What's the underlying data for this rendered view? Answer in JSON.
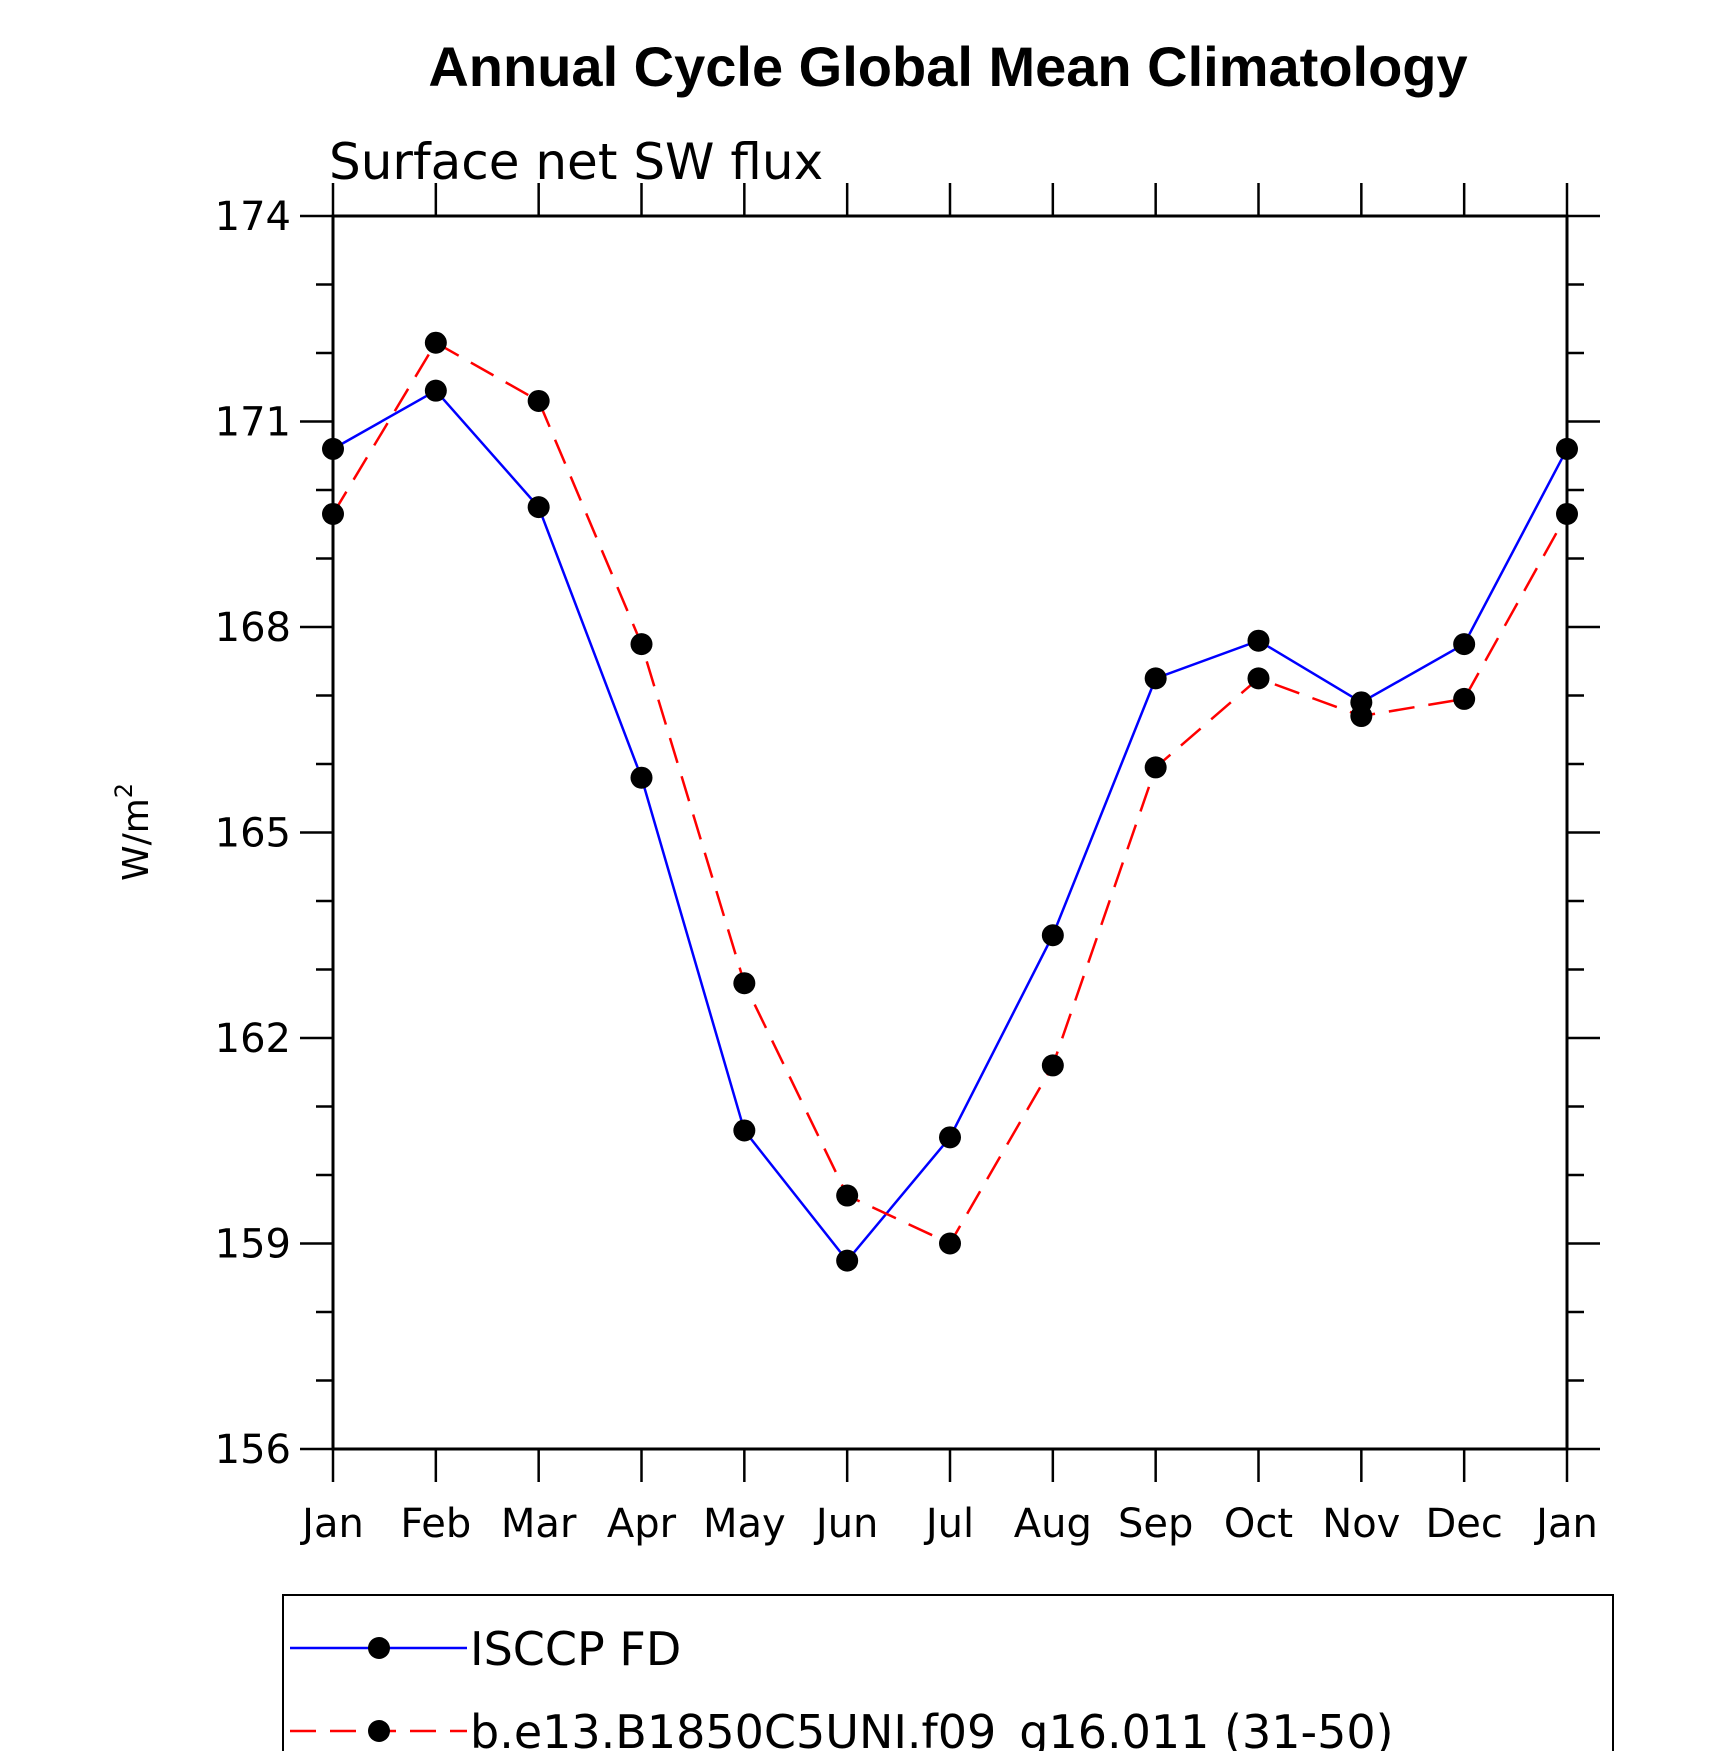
{
  "chart_data": {
    "type": "line",
    "title": "Annual Cycle Global Mean Climatology",
    "subtitle": "Surface net SW flux",
    "ylabel": "W/m",
    "ylabel_sup": "2",
    "xlabel": "",
    "categories": [
      "Jan",
      "Feb",
      "Mar",
      "Apr",
      "May",
      "Jun",
      "Jul",
      "Aug",
      "Sep",
      "Oct",
      "Nov",
      "Dec",
      "Jan"
    ],
    "ylim": [
      156,
      174
    ],
    "yticks": [
      156,
      159,
      162,
      165,
      168,
      171,
      174
    ],
    "grid": false,
    "legend_position": "bottom",
    "series": [
      {
        "name": "ISCCP FD",
        "color": "#0000ff",
        "line_style": "solid",
        "marker": "filled-circle",
        "values": [
          170.6,
          171.45,
          169.75,
          165.8,
          160.65,
          158.75,
          160.55,
          163.5,
          167.25,
          167.8,
          166.9,
          167.75,
          170.6
        ]
      },
      {
        "name": "b.e13.B1850C5UNI.f09_g16.011 (31-50)",
        "color": "#ff0000",
        "line_style": "dashed",
        "marker": "filled-circle",
        "values": [
          169.65,
          172.15,
          171.3,
          167.75,
          162.8,
          159.7,
          159.0,
          161.6,
          165.95,
          167.25,
          166.7,
          166.95,
          169.65
        ]
      }
    ]
  }
}
